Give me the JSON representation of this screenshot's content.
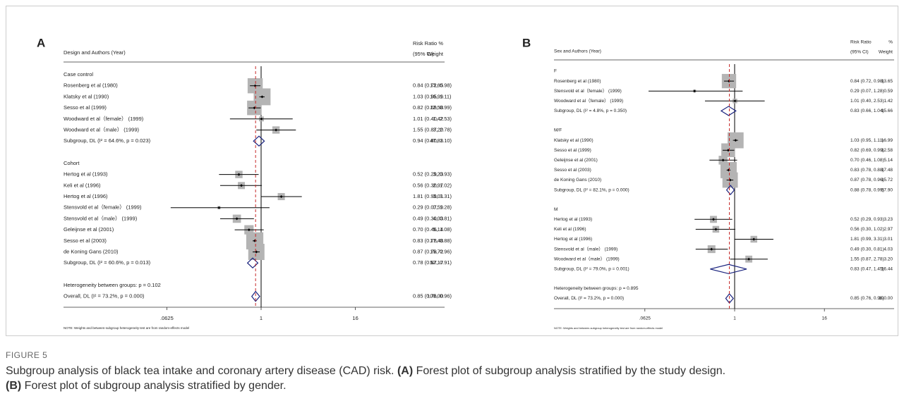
{
  "figure": {
    "label": "FIGURE 5",
    "intro": "Subgroup analysis of black tea intake and coronary artery disease (CAD) risk.",
    "items": [
      {
        "letter": "(A)",
        "text": "Forest plot of subgroup analysis stratified by the study design."
      },
      {
        "letter": "(B)",
        "text": "Forest plot of subgroup analysis stratified by gender."
      }
    ]
  },
  "chart_data": [
    {
      "type": "forest",
      "panel": "A",
      "headers": {
        "study": "Design and Authors (Year)",
        "effect": "Risk Ratio",
        "ci": "(95% CI)",
        "pct": "%",
        "weight": "Weight"
      },
      "xscale": "log",
      "xlim": [
        0.03125,
        32
      ],
      "xticks": [
        {
          "value": 0.0625,
          "label": ".0625"
        },
        1,
        16
      ],
      "null_value": 1,
      "note": "NOTE: Weights and between-subgroup heterogeneity test are from random-effects model",
      "rows": [
        {
          "kind": "group",
          "label": "Case control"
        },
        {
          "kind": "study",
          "label": "Rosenberg et al (1980)",
          "rr": 0.84,
          "lo": 0.72,
          "hi": 0.98,
          "ci": "0.84 (0.72, 0.98)",
          "w": 13.65,
          "wl": "13.65"
        },
        {
          "kind": "study",
          "label": "Klatsky et al (1990)",
          "rr": 1.03,
          "lo": 0.95,
          "hi": 1.11,
          "ci": "1.03 (0.95, 1.11)",
          "w": 16.99,
          "wl": "16.99"
        },
        {
          "kind": "study",
          "label": "Sesso et al (1999)",
          "rr": 0.82,
          "lo": 0.69,
          "hi": 0.99,
          "ci": "0.82 (0.69, 0.99)",
          "w": 12.58,
          "wl": "12.58"
        },
        {
          "kind": "study",
          "label": "Woodward et al（female） (1999)",
          "rr": 1.01,
          "lo": 0.4,
          "hi": 2.53,
          "ci": "1.01 (0.40, 2.53)",
          "w": 1.42,
          "wl": "1.42"
        },
        {
          "kind": "study",
          "label": "Woodward et al（male） (1999)",
          "rr": 1.55,
          "lo": 0.87,
          "hi": 2.78,
          "ci": "1.55 (0.87, 2.78)",
          "w": 3.2,
          "wl": "3.20"
        },
        {
          "kind": "subgroup",
          "label": "Subgroup, DL (I² = 64.6%, p = 0.023)",
          "rr": 0.94,
          "lo": 0.8,
          "hi": 1.1,
          "ci": "0.94 (0.80, 1.10)",
          "w": 47.83,
          "wl": "47.83"
        },
        {
          "kind": "group",
          "label": "Cohort"
        },
        {
          "kind": "study",
          "label": "Hertog et al (1993)",
          "rr": 0.52,
          "lo": 0.29,
          "hi": 0.93,
          "ci": "0.52 (0.29, 0.93)",
          "w": 3.23,
          "wl": "3.23"
        },
        {
          "kind": "study",
          "label": "Keli et al (1996)",
          "rr": 0.56,
          "lo": 0.3,
          "hi": 1.02,
          "ci": "0.56 (0.30, 1.02)",
          "w": 2.97,
          "wl": "2.97"
        },
        {
          "kind": "study",
          "label": "Hertog et al (1996)",
          "rr": 1.81,
          "lo": 0.99,
          "hi": 3.31,
          "ci": "1.81 (0.99, 3.31)",
          "w": 3.01,
          "wl": "3.01"
        },
        {
          "kind": "study",
          "label": "Stensvold et al（female） (1999)",
          "rr": 0.29,
          "lo": 0.07,
          "hi": 1.28,
          "ci": "0.29 (0.07, 1.28)",
          "w": 0.59,
          "wl": "0.59"
        },
        {
          "kind": "study",
          "label": "Stensvold et al（male） (1999)",
          "rr": 0.49,
          "lo": 0.3,
          "hi": 0.81,
          "ci": "0.49 (0.30, 0.81)",
          "w": 4.03,
          "wl": "4.03"
        },
        {
          "kind": "study",
          "label": "Geleijnse et al (2001)",
          "rr": 0.7,
          "lo": 0.46,
          "hi": 1.08,
          "ci": "0.70 (0.46, 1.08)",
          "w": 5.14,
          "wl": "5.14"
        },
        {
          "kind": "study",
          "label": "Sesso et al (2003)",
          "rr": 0.83,
          "lo": 0.78,
          "hi": 0.88,
          "ci": "0.83 (0.78, 0.88)",
          "w": 17.48,
          "wl": "17.48"
        },
        {
          "kind": "study",
          "label": "de Koning Gans (2010)",
          "rr": 0.87,
          "lo": 0.78,
          "hi": 0.96,
          "ci": "0.87 (0.78, 0.96)",
          "w": 15.72,
          "wl": "15.72"
        },
        {
          "kind": "subgroup",
          "label": "Subgroup, DL (I² = 60.6%, p = 0.013)",
          "rr": 0.78,
          "lo": 0.67,
          "hi": 0.91,
          "ci": "0.78 (0.67, 0.91)",
          "w": 52.17,
          "wl": "52.17"
        },
        {
          "kind": "text",
          "label": "Heterogeneity between groups: p = 0.102"
        },
        {
          "kind": "overall",
          "label": "Overall, DL (I² = 73.2%, p = 0.000)",
          "rr": 0.85,
          "lo": 0.76,
          "hi": 0.96,
          "ci": "0.85 (0.76, 0.96)",
          "w": 100,
          "wl": "100.00"
        }
      ]
    },
    {
      "type": "forest",
      "panel": "B",
      "headers": {
        "study": "Sex and Authors (Year)",
        "effect": "Risk Ratio",
        "ci": "(95% CI)",
        "pct": "%",
        "weight": "Weight"
      },
      "xscale": "log",
      "xlim": [
        0.03125,
        32
      ],
      "xticks": [
        {
          "value": 0.0625,
          "label": ".0625"
        },
        1,
        16
      ],
      "null_value": 1,
      "note": "NOTE: Weights and between-subgroup heterogeneity test are from random-effects model",
      "rows": [
        {
          "kind": "group",
          "label": "F"
        },
        {
          "kind": "study",
          "label": "Rosenberg et al (1980)",
          "rr": 0.84,
          "lo": 0.72,
          "hi": 0.98,
          "ci": "0.84 (0.72, 0.98)",
          "w": 13.65,
          "wl": "13.65"
        },
        {
          "kind": "study",
          "label": "Stensvold et al（female） (1999)",
          "rr": 0.29,
          "lo": 0.07,
          "hi": 1.28,
          "ci": "0.29 (0.07, 1.28)",
          "w": 0.59,
          "wl": "0.59"
        },
        {
          "kind": "study",
          "label": "Woodward et al（female） (1999)",
          "rr": 1.01,
          "lo": 0.4,
          "hi": 2.53,
          "ci": "1.01 (0.40, 2.53)",
          "w": 1.42,
          "wl": "1.42"
        },
        {
          "kind": "subgroup",
          "label": "Subgroup, DL (I² = 4.8%, p = 0.350)",
          "rr": 0.83,
          "lo": 0.66,
          "hi": 1.04,
          "ci": "0.83 (0.66, 1.04)",
          "w": 15.66,
          "wl": "15.66"
        },
        {
          "kind": "group",
          "label": "M/F"
        },
        {
          "kind": "study",
          "label": "Klatsky et al (1990)",
          "rr": 1.03,
          "lo": 0.95,
          "hi": 1.11,
          "ci": "1.03 (0.95, 1.11)",
          "w": 16.99,
          "wl": "16.99"
        },
        {
          "kind": "study",
          "label": "Sesso et al (1999)",
          "rr": 0.82,
          "lo": 0.69,
          "hi": 0.99,
          "ci": "0.82 (0.69, 0.99)",
          "w": 12.58,
          "wl": "12.58"
        },
        {
          "kind": "study",
          "label": "Geleijnse et al (2001)",
          "rr": 0.7,
          "lo": 0.46,
          "hi": 1.08,
          "ci": "0.70 (0.46, 1.08)",
          "w": 5.14,
          "wl": "5.14"
        },
        {
          "kind": "study",
          "label": "Sesso et al (2003)",
          "rr": 0.83,
          "lo": 0.78,
          "hi": 0.88,
          "ci": "0.83 (0.78, 0.88)",
          "w": 17.48,
          "wl": "17.48"
        },
        {
          "kind": "study",
          "label": "de Koning Gans (2010)",
          "rr": 0.87,
          "lo": 0.78,
          "hi": 0.96,
          "ci": "0.87 (0.78, 0.96)",
          "w": 15.72,
          "wl": "15.72"
        },
        {
          "kind": "subgroup",
          "label": "Subgroup, DL (I² = 82.1%, p = 0.000)",
          "rr": 0.88,
          "lo": 0.78,
          "hi": 0.99,
          "ci": "0.88 (0.78, 0.99)",
          "w": 67.9,
          "wl": "67.90"
        },
        {
          "kind": "group",
          "label": "M"
        },
        {
          "kind": "study",
          "label": "Hertog et al (1993)",
          "rr": 0.52,
          "lo": 0.29,
          "hi": 0.93,
          "ci": "0.52 (0.29, 0.93)",
          "w": 3.23,
          "wl": "3.23"
        },
        {
          "kind": "study",
          "label": "Keli et al (1996)",
          "rr": 0.56,
          "lo": 0.3,
          "hi": 1.02,
          "ci": "0.56 (0.30, 1.02)",
          "w": 2.97,
          "wl": "2.97"
        },
        {
          "kind": "study",
          "label": "Hertog et al (1996)",
          "rr": 1.81,
          "lo": 0.99,
          "hi": 3.31,
          "ci": "1.81 (0.99, 3.31)",
          "w": 3.01,
          "wl": "3.01"
        },
        {
          "kind": "study",
          "label": "Stensvold et al（male） (1999)",
          "rr": 0.49,
          "lo": 0.3,
          "hi": 0.81,
          "ci": "0.49 (0.30, 0.81)",
          "w": 4.03,
          "wl": "4.03"
        },
        {
          "kind": "study",
          "label": "Woodward et al（male） (1999)",
          "rr": 1.55,
          "lo": 0.87,
          "hi": 2.78,
          "ci": "1.55 (0.87, 2.78)",
          "w": 3.2,
          "wl": "3.20"
        },
        {
          "kind": "subgroup",
          "label": "Subgroup, DL (I² = 79.0%, p = 0.001)",
          "rr": 0.83,
          "lo": 0.47,
          "hi": 1.45,
          "ci": "0.83 (0.47, 1.45)",
          "w": 16.44,
          "wl": "16.44"
        },
        {
          "kind": "text",
          "label": "Heterogeneity between groups: p = 0.895"
        },
        {
          "kind": "overall",
          "label": "Overall, DL (I² = 73.2%, p = 0.000)",
          "rr": 0.85,
          "lo": 0.76,
          "hi": 0.96,
          "ci": "0.85 (0.76, 0.96)",
          "w": 100,
          "wl": "100.00"
        }
      ]
    }
  ]
}
